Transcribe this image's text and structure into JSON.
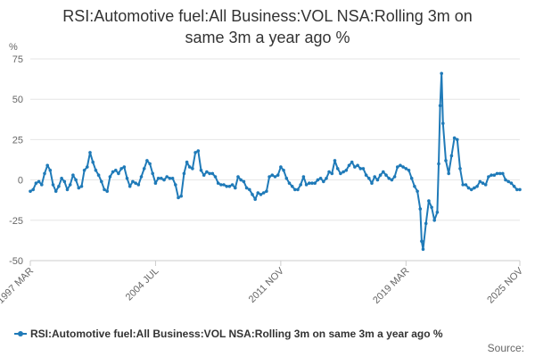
{
  "chart_data": {
    "type": "line",
    "title_line1": "RSI:Automotive fuel:All Business:VOL NSA:Rolling 3m on",
    "title_line2": "same 3m a year ago %",
    "ylabel": "%",
    "xlabel": "",
    "ylim": [
      -50,
      75
    ],
    "yticks": [
      -50,
      -25,
      0,
      25,
      50,
      75
    ],
    "xticks": [
      "1997 MAR",
      "2004 JUL",
      "2011 NOV",
      "2019 MAR",
      "2025 NOV"
    ],
    "grid": true,
    "legend_position": "bottom",
    "series": [
      {
        "name": "RSI:Automotive fuel:All Business:VOL NSA:Rolling 3m on same 3m a year ago %",
        "color": "#1f7ab8",
        "values": [
          [
            "1997-03",
            -7
          ],
          [
            "1997-05",
            -6
          ],
          [
            "1997-07",
            -2
          ],
          [
            "1997-09",
            -1
          ],
          [
            "1997-11",
            -3
          ],
          [
            "1998-01",
            4
          ],
          [
            "1998-03",
            9
          ],
          [
            "1998-05",
            6
          ],
          [
            "1998-07",
            -3
          ],
          [
            "1998-09",
            -7
          ],
          [
            "1998-11",
            -4
          ],
          [
            "1999-01",
            1
          ],
          [
            "1999-03",
            -1
          ],
          [
            "1999-05",
            -6
          ],
          [
            "1999-07",
            -3
          ],
          [
            "1999-09",
            3
          ],
          [
            "1999-11",
            0
          ],
          [
            "2000-01",
            -5
          ],
          [
            "2000-03",
            -4
          ],
          [
            "2000-05",
            6
          ],
          [
            "2000-07",
            8
          ],
          [
            "2000-09",
            17
          ],
          [
            "2000-11",
            11
          ],
          [
            "2001-01",
            6
          ],
          [
            "2001-03",
            3
          ],
          [
            "2001-05",
            -1
          ],
          [
            "2001-07",
            -6
          ],
          [
            "2001-09",
            -7
          ],
          [
            "2001-11",
            2
          ],
          [
            "2002-01",
            5
          ],
          [
            "2002-03",
            6
          ],
          [
            "2002-05",
            4
          ],
          [
            "2002-07",
            7
          ],
          [
            "2002-09",
            8
          ],
          [
            "2002-11",
            1
          ],
          [
            "2003-01",
            -4
          ],
          [
            "2003-03",
            -1
          ],
          [
            "2003-05",
            -2
          ],
          [
            "2003-07",
            -3
          ],
          [
            "2003-09",
            2
          ],
          [
            "2003-11",
            7
          ],
          [
            "2004-01",
            12
          ],
          [
            "2004-03",
            10
          ],
          [
            "2004-05",
            4
          ],
          [
            "2004-07",
            -2
          ],
          [
            "2004-09",
            1
          ],
          [
            "2004-11",
            1
          ],
          [
            "2005-01",
            0
          ],
          [
            "2005-03",
            2
          ],
          [
            "2005-05",
            1
          ],
          [
            "2005-07",
            1
          ],
          [
            "2005-09",
            -3
          ],
          [
            "2005-11",
            -11
          ],
          [
            "2006-01",
            -10
          ],
          [
            "2006-03",
            4
          ],
          [
            "2006-05",
            11
          ],
          [
            "2006-07",
            8
          ],
          [
            "2006-09",
            7
          ],
          [
            "2006-11",
            17
          ],
          [
            "2007-01",
            18
          ],
          [
            "2007-03",
            6
          ],
          [
            "2007-05",
            3
          ],
          [
            "2007-07",
            5
          ],
          [
            "2007-09",
            4
          ],
          [
            "2007-11",
            4
          ],
          [
            "2008-01",
            2
          ],
          [
            "2008-03",
            -2
          ],
          [
            "2008-05",
            -3
          ],
          [
            "2008-07",
            -3
          ],
          [
            "2008-09",
            -4
          ],
          [
            "2008-11",
            -4
          ],
          [
            "2009-01",
            -3
          ],
          [
            "2009-03",
            -5
          ],
          [
            "2009-05",
            2
          ],
          [
            "2009-07",
            0
          ],
          [
            "2009-09",
            -1
          ],
          [
            "2009-11",
            -5
          ],
          [
            "2010-01",
            -6
          ],
          [
            "2010-03",
            -9
          ],
          [
            "2010-05",
            -12
          ],
          [
            "2010-07",
            -8
          ],
          [
            "2010-09",
            -9
          ],
          [
            "2010-11",
            -8
          ],
          [
            "2011-01",
            -7
          ],
          [
            "2011-03",
            2
          ],
          [
            "2011-05",
            3
          ],
          [
            "2011-07",
            2
          ],
          [
            "2011-09",
            3
          ],
          [
            "2011-11",
            8
          ],
          [
            "2012-01",
            6
          ],
          [
            "2012-03",
            1
          ],
          [
            "2012-05",
            -2
          ],
          [
            "2012-07",
            -4
          ],
          [
            "2012-09",
            -6
          ],
          [
            "2012-11",
            -6
          ],
          [
            "2013-01",
            -3
          ],
          [
            "2013-03",
            2
          ],
          [
            "2013-05",
            -3
          ],
          [
            "2013-07",
            -2
          ],
          [
            "2013-09",
            -2
          ],
          [
            "2013-11",
            -2
          ],
          [
            "2014-01",
            0
          ],
          [
            "2014-03",
            1
          ],
          [
            "2014-05",
            -1
          ],
          [
            "2014-07",
            1
          ],
          [
            "2014-09",
            5
          ],
          [
            "2014-11",
            4
          ],
          [
            "2015-01",
            12
          ],
          [
            "2015-03",
            7
          ],
          [
            "2015-05",
            4
          ],
          [
            "2015-07",
            5
          ],
          [
            "2015-09",
            6
          ],
          [
            "2015-11",
            9
          ],
          [
            "2016-01",
            11
          ],
          [
            "2016-03",
            8
          ],
          [
            "2016-05",
            9
          ],
          [
            "2016-07",
            7
          ],
          [
            "2016-09",
            7
          ],
          [
            "2016-11",
            3
          ],
          [
            "2017-01",
            1
          ],
          [
            "2017-03",
            -2
          ],
          [
            "2017-05",
            2
          ],
          [
            "2017-07",
            0
          ],
          [
            "2017-09",
            3
          ],
          [
            "2017-11",
            5
          ],
          [
            "2018-01",
            3
          ],
          [
            "2018-03",
            1
          ],
          [
            "2018-05",
            0
          ],
          [
            "2018-07",
            2
          ],
          [
            "2018-09",
            8
          ],
          [
            "2018-11",
            9
          ],
          [
            "2019-01",
            8
          ],
          [
            "2019-03",
            7
          ],
          [
            "2019-05",
            6
          ],
          [
            "2019-07",
            1
          ],
          [
            "2019-09",
            -4
          ],
          [
            "2019-11",
            -7
          ],
          [
            "2020-01",
            -18
          ],
          [
            "2020-02",
            -38
          ],
          [
            "2020-03",
            -43
          ],
          [
            "2020-05",
            -27
          ],
          [
            "2020-07",
            -13
          ],
          [
            "2020-09",
            -17
          ],
          [
            "2020-11",
            -25
          ],
          [
            "2021-01",
            -20
          ],
          [
            "2021-02",
            10
          ],
          [
            "2021-03",
            46
          ],
          [
            "2021-04",
            66
          ],
          [
            "2021-05",
            35
          ],
          [
            "2021-07",
            12
          ],
          [
            "2021-09",
            4
          ],
          [
            "2021-11",
            15
          ],
          [
            "2022-01",
            26
          ],
          [
            "2022-03",
            25
          ],
          [
            "2022-05",
            7
          ],
          [
            "2022-07",
            -3
          ],
          [
            "2022-09",
            -3
          ],
          [
            "2022-11",
            -5
          ],
          [
            "2023-01",
            -6
          ],
          [
            "2023-03",
            -5
          ],
          [
            "2023-05",
            -4
          ],
          [
            "2023-07",
            -1
          ],
          [
            "2023-09",
            -2
          ],
          [
            "2023-11",
            -3
          ],
          [
            "2024-01",
            2
          ],
          [
            "2024-03",
            3
          ],
          [
            "2024-05",
            3
          ],
          [
            "2024-07",
            4
          ],
          [
            "2024-09",
            4
          ],
          [
            "2024-11",
            4
          ],
          [
            "2025-01",
            0
          ],
          [
            "2025-03",
            -1
          ],
          [
            "2025-05",
            -2
          ],
          [
            "2025-07",
            -4
          ],
          [
            "2025-09",
            -6
          ],
          [
            "2025-11",
            -6
          ]
        ]
      }
    ]
  },
  "source_label": "Source:"
}
